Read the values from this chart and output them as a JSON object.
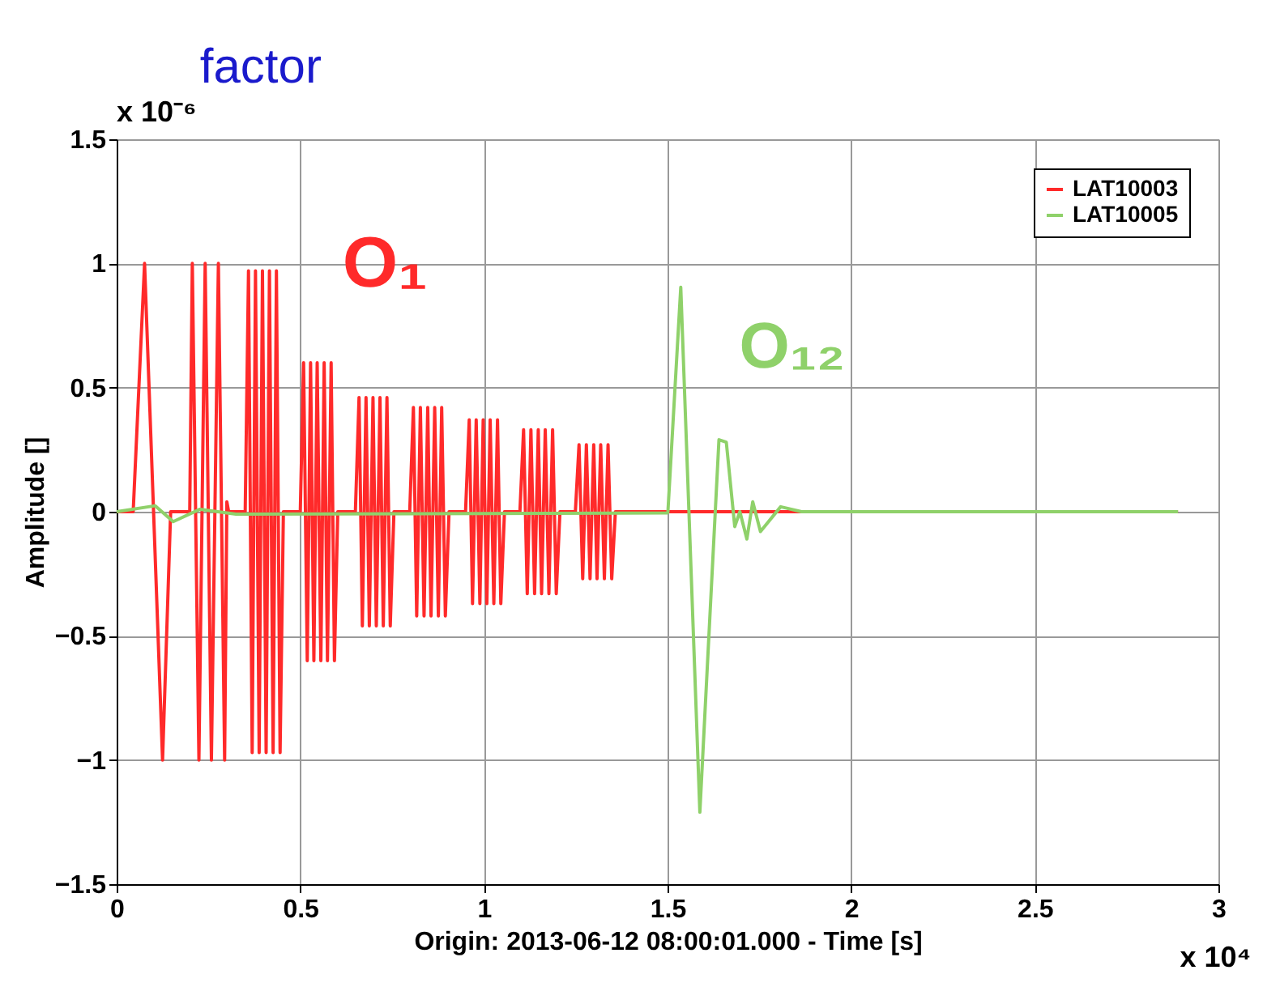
{
  "chart_data": {
    "type": "line",
    "title": "factor",
    "xlabel": "Origin: 2013-06-12 08:00:01.000 - Time  [s]",
    "ylabel": "Amplitude  []",
    "xlim": [
      0,
      3
    ],
    "xticks": [
      0,
      0.5,
      1,
      1.5,
      2,
      2.5,
      3
    ],
    "ylim": [
      -1.5,
      1.5
    ],
    "yticks": [
      -1.5,
      -1,
      -0.5,
      0,
      0.5,
      1,
      1.5
    ],
    "grid": true,
    "legend": "top right",
    "series": [
      {
        "name": "LAT10003",
        "color": "#ff2a2a",
        "x": [
          0,
          0.045,
          0.076,
          0.125,
          0.147,
          0.199,
          0.206,
          0.224,
          0.241,
          0.258,
          0.277,
          0.294,
          0.3,
          0.305,
          0.35,
          0.359,
          0.369,
          0.378,
          0.388,
          0.397,
          0.407,
          0.416,
          0.426,
          0.435,
          0.445,
          0.454,
          0.5,
          0.509,
          0.519,
          0.528,
          0.537,
          0.546,
          0.556,
          0.565,
          0.574,
          0.584,
          0.593,
          0.602,
          0.65,
          0.66,
          0.669,
          0.679,
          0.688,
          0.698,
          0.707,
          0.717,
          0.726,
          0.736,
          0.745,
          0.755,
          0.798,
          0.808,
          0.817,
          0.827,
          0.837,
          0.847,
          0.856,
          0.866,
          0.876,
          0.885,
          0.895,
          0.905,
          0.95,
          0.96,
          0.969,
          0.979,
          0.989,
          0.998,
          1.008,
          1.017,
          1.027,
          1.037,
          1.046,
          1.056,
          1.098,
          1.108,
          1.118,
          1.128,
          1.138,
          1.148,
          1.157,
          1.167,
          1.177,
          1.187,
          1.197,
          1.207,
          1.249,
          1.259,
          1.269,
          1.279,
          1.289,
          1.299,
          1.308,
          1.318,
          1.328,
          1.338,
          1.348,
          1.358,
          2.89
        ],
        "values": [
          0,
          0,
          1,
          -1,
          0,
          0,
          1,
          -1,
          1,
          -1,
          1,
          -1,
          0.04,
          0,
          0,
          0.97,
          -0.97,
          0.97,
          -0.97,
          0.97,
          -0.97,
          0.97,
          -0.97,
          0.97,
          -0.97,
          0,
          0,
          0.6,
          -0.6,
          0.6,
          -0.6,
          0.6,
          -0.6,
          0.6,
          -0.6,
          0.6,
          -0.6,
          0,
          0,
          0.46,
          -0.46,
          0.46,
          -0.46,
          0.46,
          -0.46,
          0.46,
          -0.46,
          0.46,
          -0.46,
          0,
          0,
          0.42,
          -0.42,
          0.42,
          -0.42,
          0.42,
          -0.42,
          0.42,
          -0.42,
          0.42,
          -0.42,
          0,
          0,
          0.37,
          -0.37,
          0.37,
          -0.37,
          0.37,
          -0.37,
          0.37,
          -0.37,
          0.37,
          -0.37,
          0,
          0,
          0.33,
          -0.33,
          0.33,
          -0.33,
          0.33,
          -0.33,
          0.33,
          -0.33,
          0.33,
          -0.33,
          0,
          0,
          0.27,
          -0.27,
          0.27,
          -0.27,
          0.27,
          -0.27,
          0.27,
          -0.27,
          0.27,
          -0.27,
          0,
          0
        ]
      },
      {
        "name": "LAT10005",
        "color": "#8fd16a",
        "x": [
          0,
          0.105,
          0.154,
          0.227,
          0.325,
          1.5,
          1.501,
          1.536,
          1.588,
          1.64,
          1.66,
          1.683,
          1.697,
          1.716,
          1.732,
          1.753,
          1.808,
          1.865,
          2.89
        ],
        "values": [
          0,
          0.024,
          -0.04,
          0.01,
          -0.01,
          -0.005,
          0,
          0.904,
          -1.21,
          0.29,
          0.28,
          -0.06,
          0,
          -0.11,
          0.04,
          -0.08,
          0.02,
          0,
          0
        ]
      }
    ],
    "annotations": [
      "O₁",
      "O₁₂",
      "x 10⁻⁶",
      "x 10⁴"
    ]
  }
}
